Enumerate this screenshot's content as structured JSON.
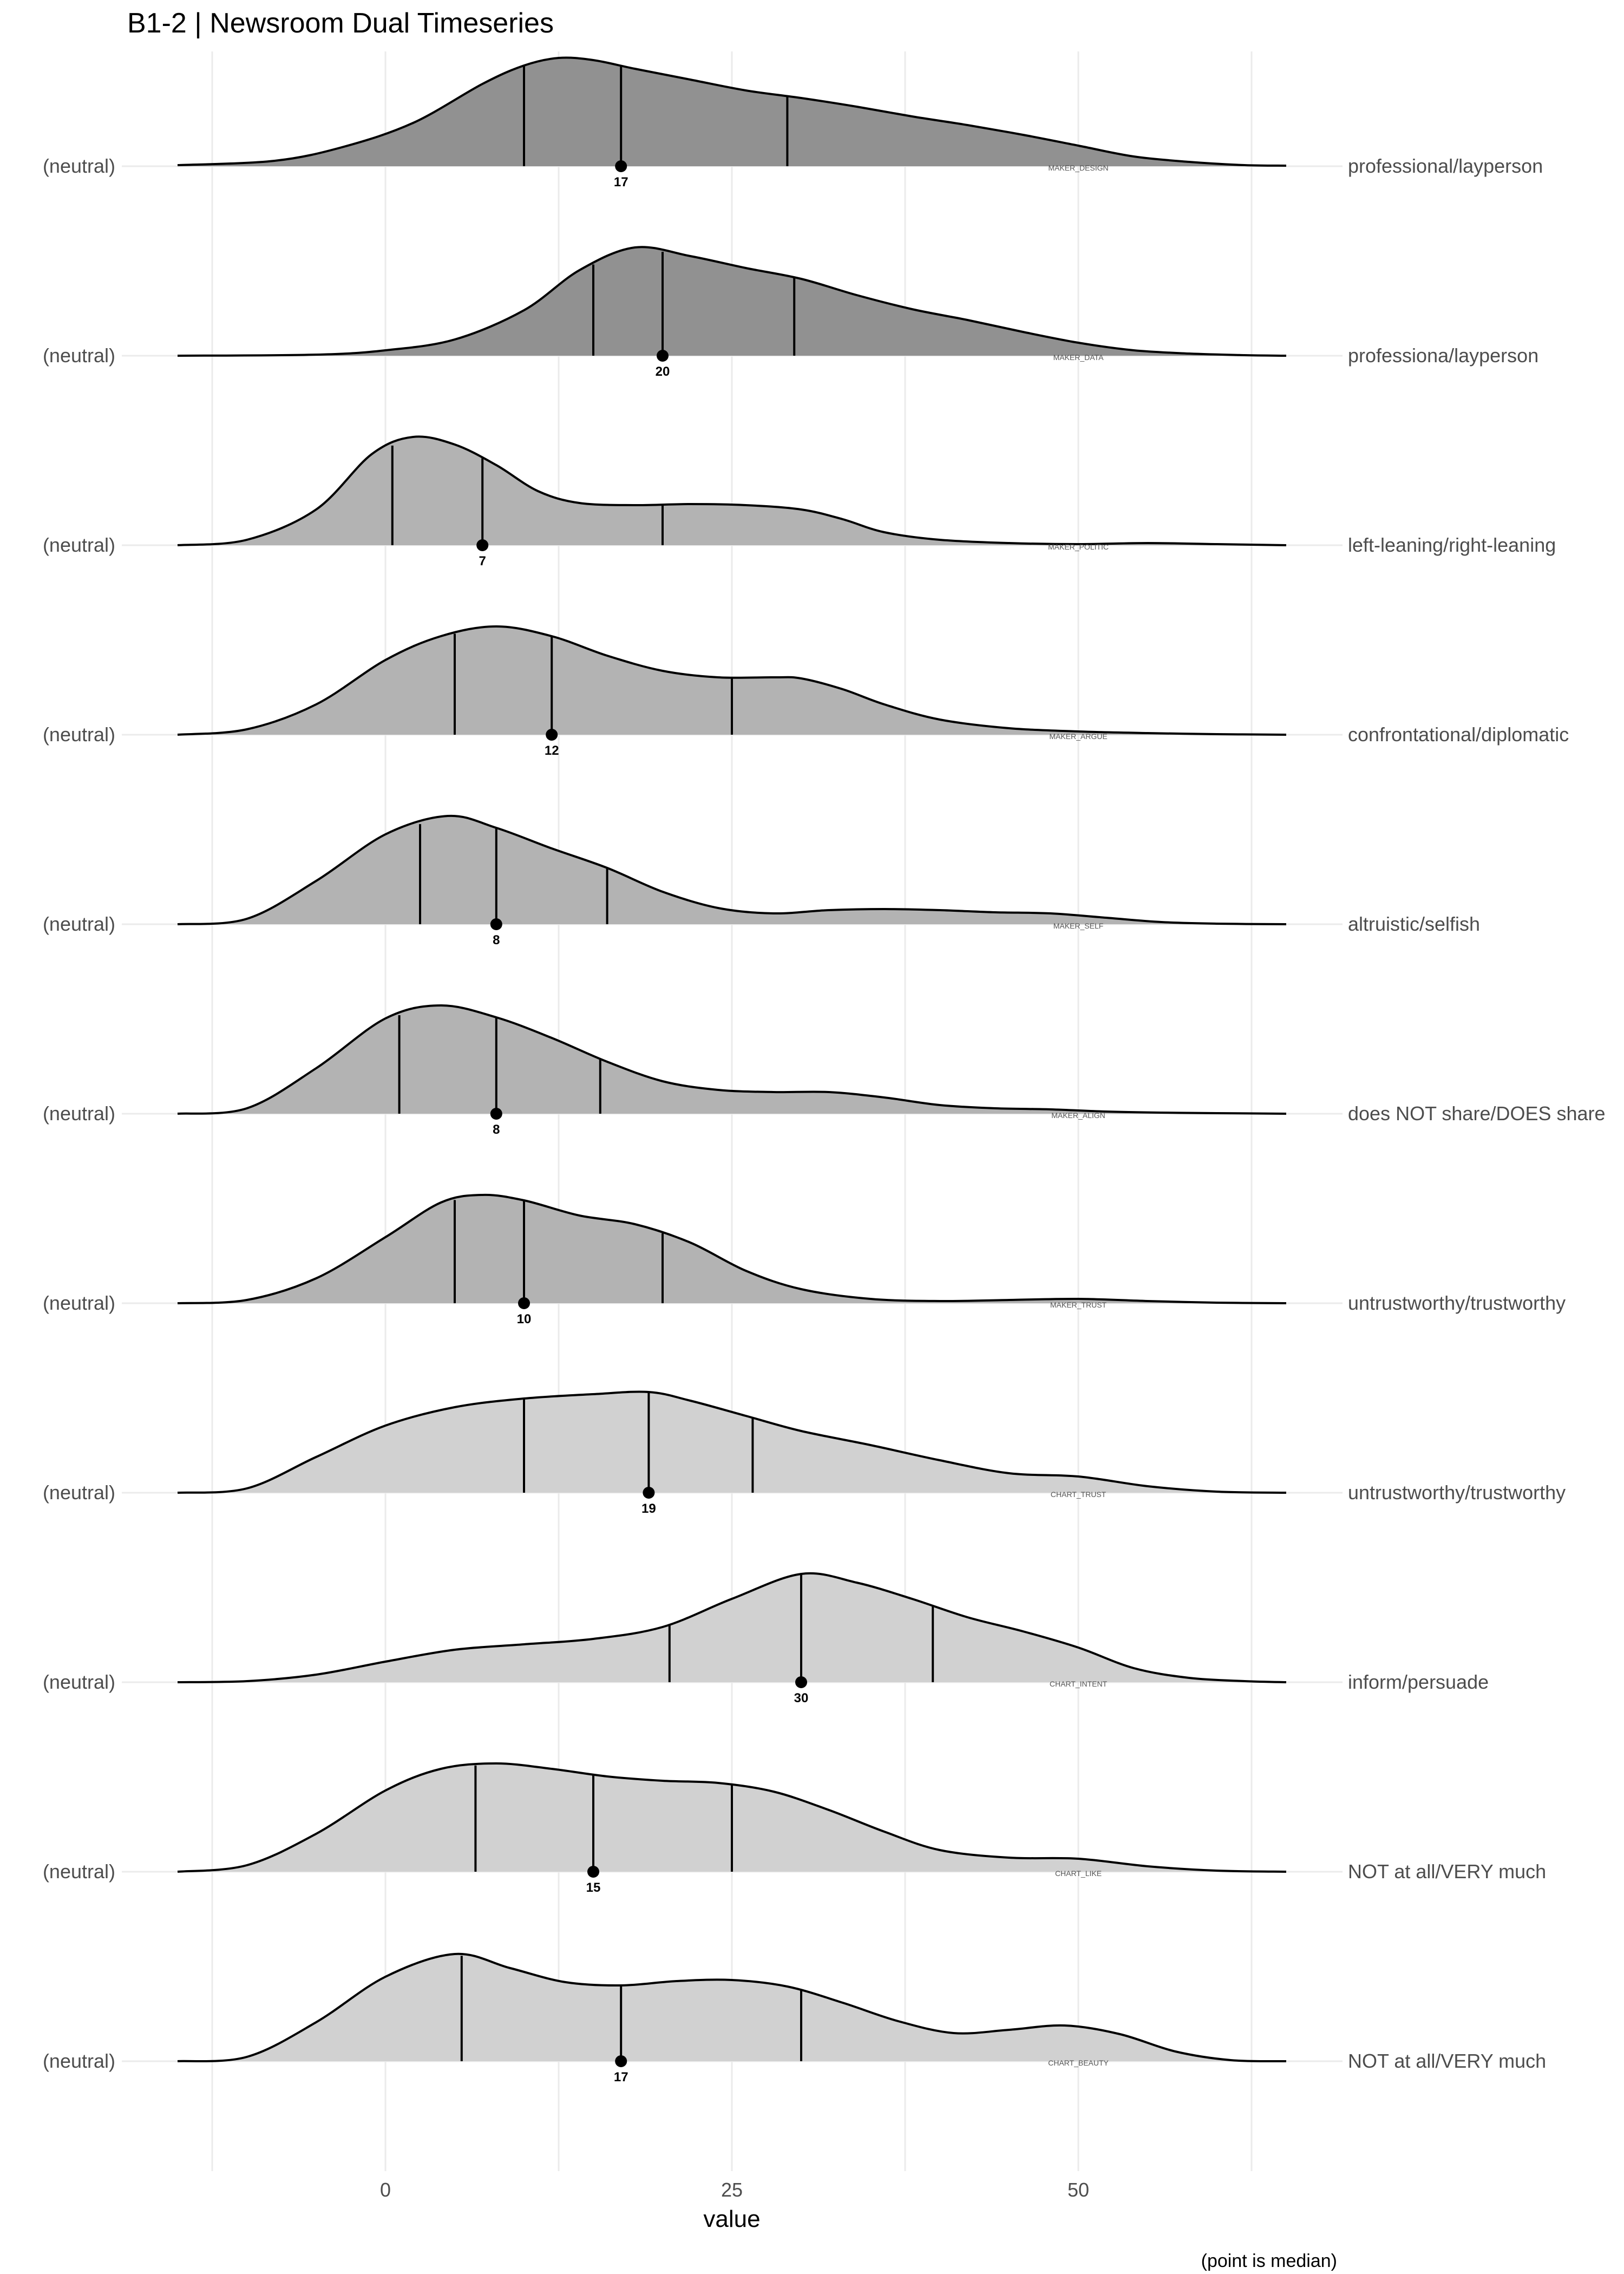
{
  "chart_data": {
    "type": "ridgeline",
    "title": "B1-2 | Newsroom Dual Timeseries",
    "xlabel": "value",
    "caption": "(point is median)",
    "xlim": [
      -15,
      65
    ],
    "x_ticks": [
      0,
      25,
      50
    ],
    "x_minor_gridlines": [
      -12.5,
      12.5,
      37.5,
      62.5
    ],
    "neutral_label": "(neutral)",
    "series": [
      {
        "var": "MAKER_DESIGN",
        "right_label": "professional/layperson",
        "color": "#919191",
        "median": 17,
        "quantiles": [
          10,
          17,
          29
        ],
        "density": [
          [
            -15,
            0.01
          ],
          [
            -8,
            0.05
          ],
          [
            -3,
            0.18
          ],
          [
            2,
            0.4
          ],
          [
            7,
            0.76
          ],
          [
            10,
            0.93
          ],
          [
            12.5,
            1.0
          ],
          [
            15,
            0.98
          ],
          [
            18,
            0.9
          ],
          [
            22,
            0.8
          ],
          [
            26,
            0.7
          ],
          [
            30,
            0.63
          ],
          [
            34,
            0.55
          ],
          [
            38,
            0.46
          ],
          [
            42,
            0.38
          ],
          [
            46,
            0.29
          ],
          [
            50,
            0.19
          ],
          [
            54,
            0.09
          ],
          [
            58,
            0.04
          ],
          [
            62,
            0.01
          ],
          [
            65,
            0.005
          ]
        ]
      },
      {
        "var": "MAKER_DATA",
        "right_label": "professiona/layperson",
        "color": "#919191",
        "median": 20,
        "quantiles": [
          15,
          20,
          29.5
        ],
        "density": [
          [
            -15,
            0.0
          ],
          [
            -5,
            0.01
          ],
          [
            0,
            0.05
          ],
          [
            5,
            0.15
          ],
          [
            10,
            0.42
          ],
          [
            14,
            0.79
          ],
          [
            18,
            1.0
          ],
          [
            22,
            0.92
          ],
          [
            26,
            0.81
          ],
          [
            30,
            0.71
          ],
          [
            34,
            0.56
          ],
          [
            38,
            0.43
          ],
          [
            42,
            0.33
          ],
          [
            46,
            0.22
          ],
          [
            50,
            0.12
          ],
          [
            54,
            0.05
          ],
          [
            58,
            0.02
          ],
          [
            62,
            0.005
          ],
          [
            65,
            0.0
          ]
        ]
      },
      {
        "var": "MAKER_POLITIC",
        "right_label": "left-leaning/right-leaning",
        "color": "#b3b3b3",
        "median": 7,
        "quantiles": [
          0.5,
          7,
          20
        ],
        "density": [
          [
            -15,
            0.0
          ],
          [
            -10,
            0.05
          ],
          [
            -5,
            0.33
          ],
          [
            -1,
            0.84
          ],
          [
            2,
            1.0
          ],
          [
            5,
            0.93
          ],
          [
            8,
            0.74
          ],
          [
            11,
            0.5
          ],
          [
            14,
            0.39
          ],
          [
            18,
            0.37
          ],
          [
            22,
            0.38
          ],
          [
            26,
            0.37
          ],
          [
            30,
            0.33
          ],
          [
            33,
            0.24
          ],
          [
            36,
            0.12
          ],
          [
            40,
            0.05
          ],
          [
            45,
            0.02
          ],
          [
            50,
            0.01
          ],
          [
            55,
            0.02
          ],
          [
            60,
            0.01
          ],
          [
            65,
            0.0
          ]
        ]
      },
      {
        "var": "MAKER_ARGUE",
        "right_label": "confrontational/diplomatic",
        "color": "#b3b3b3",
        "median": 12,
        "quantiles": [
          5,
          12,
          25
        ],
        "density": [
          [
            -15,
            0.0
          ],
          [
            -10,
            0.05
          ],
          [
            -5,
            0.28
          ],
          [
            0,
            0.69
          ],
          [
            4,
            0.91
          ],
          [
            8,
            1.0
          ],
          [
            12,
            0.91
          ],
          [
            16,
            0.73
          ],
          [
            20,
            0.59
          ],
          [
            24,
            0.53
          ],
          [
            28,
            0.53
          ],
          [
            30,
            0.52
          ],
          [
            33,
            0.42
          ],
          [
            36,
            0.28
          ],
          [
            40,
            0.14
          ],
          [
            45,
            0.06
          ],
          [
            50,
            0.03
          ],
          [
            55,
            0.015
          ],
          [
            60,
            0.005
          ],
          [
            65,
            0.0
          ]
        ]
      },
      {
        "var": "MAKER_SELF",
        "right_label": "altruistic/selfish",
        "color": "#b3b3b3",
        "median": 8,
        "quantiles": [
          2.5,
          8,
          16
        ],
        "density": [
          [
            -15,
            0.0
          ],
          [
            -10,
            0.05
          ],
          [
            -5,
            0.4
          ],
          [
            0,
            0.83
          ],
          [
            4.5,
            1.0
          ],
          [
            8,
            0.89
          ],
          [
            12,
            0.7
          ],
          [
            16,
            0.52
          ],
          [
            20,
            0.3
          ],
          [
            24,
            0.15
          ],
          [
            28,
            0.1
          ],
          [
            32,
            0.13
          ],
          [
            36,
            0.14
          ],
          [
            40,
            0.13
          ],
          [
            44,
            0.11
          ],
          [
            48,
            0.1
          ],
          [
            52,
            0.06
          ],
          [
            56,
            0.02
          ],
          [
            60,
            0.005
          ],
          [
            65,
            0.0
          ]
        ]
      },
      {
        "var": "MAKER_ALIGN",
        "right_label": "does NOT share/DOES share",
        "color": "#b3b3b3",
        "median": 8,
        "quantiles": [
          1,
          8,
          15.5
        ],
        "density": [
          [
            -15,
            0.0
          ],
          [
            -10,
            0.05
          ],
          [
            -5,
            0.42
          ],
          [
            0,
            0.88
          ],
          [
            4,
            1.0
          ],
          [
            8,
            0.89
          ],
          [
            12,
            0.7
          ],
          [
            16,
            0.48
          ],
          [
            20,
            0.3
          ],
          [
            24,
            0.22
          ],
          [
            28,
            0.2
          ],
          [
            32,
            0.2
          ],
          [
            36,
            0.15
          ],
          [
            40,
            0.08
          ],
          [
            44,
            0.05
          ],
          [
            48,
            0.04
          ],
          [
            52,
            0.02
          ],
          [
            56,
            0.01
          ],
          [
            60,
            0.005
          ],
          [
            65,
            0.0
          ]
        ]
      },
      {
        "var": "MAKER_TRUST",
        "right_label": "untrustworthy/trustworthy",
        "color": "#b3b3b3",
        "median": 10,
        "quantiles": [
          5,
          10,
          20
        ],
        "density": [
          [
            -15,
            0.0
          ],
          [
            -10,
            0.03
          ],
          [
            -5,
            0.23
          ],
          [
            0,
            0.61
          ],
          [
            4,
            0.93
          ],
          [
            7,
            1.0
          ],
          [
            10,
            0.95
          ],
          [
            14,
            0.81
          ],
          [
            18,
            0.73
          ],
          [
            22,
            0.56
          ],
          [
            26,
            0.3
          ],
          [
            30,
            0.13
          ],
          [
            35,
            0.04
          ],
          [
            40,
            0.02
          ],
          [
            45,
            0.03
          ],
          [
            50,
            0.04
          ],
          [
            55,
            0.02
          ],
          [
            60,
            0.005
          ],
          [
            65,
            0.0
          ]
        ]
      },
      {
        "var": "CHART_TRUST",
        "right_label": "untrustworthy/trustworthy",
        "color": "#d1d1d1",
        "median": 19,
        "quantiles": [
          10,
          19,
          26.5
        ],
        "density": [
          [
            -15,
            0.0
          ],
          [
            -10,
            0.04
          ],
          [
            -5,
            0.33
          ],
          [
            0,
            0.62
          ],
          [
            5,
            0.79
          ],
          [
            10,
            0.87
          ],
          [
            15,
            0.91
          ],
          [
            19,
            0.93
          ],
          [
            22,
            0.85
          ],
          [
            26,
            0.71
          ],
          [
            30,
            0.57
          ],
          [
            35,
            0.44
          ],
          [
            40,
            0.3
          ],
          [
            45,
            0.18
          ],
          [
            50,
            0.15
          ],
          [
            55,
            0.06
          ],
          [
            60,
            0.01
          ],
          [
            65,
            0.0
          ]
        ]
      },
      {
        "var": "CHART_INTENT",
        "right_label": "inform/persuade",
        "color": "#d1d1d1",
        "median": 30,
        "quantiles": [
          20.5,
          30,
          39.5
        ],
        "density": [
          [
            -15,
            0.0
          ],
          [
            -10,
            0.01
          ],
          [
            -5,
            0.07
          ],
          [
            0,
            0.19
          ],
          [
            5,
            0.3
          ],
          [
            10,
            0.35
          ],
          [
            15,
            0.4
          ],
          [
            20,
            0.51
          ],
          [
            25,
            0.77
          ],
          [
            30,
            1.0
          ],
          [
            34,
            0.92
          ],
          [
            38,
            0.77
          ],
          [
            42,
            0.6
          ],
          [
            46,
            0.47
          ],
          [
            50,
            0.32
          ],
          [
            54,
            0.13
          ],
          [
            58,
            0.04
          ],
          [
            62,
            0.01
          ],
          [
            65,
            0.0
          ]
        ]
      },
      {
        "var": "CHART_LIKE",
        "right_label": "NOT at all/VERY much",
        "color": "#d1d1d1",
        "median": 15,
        "quantiles": [
          6.5,
          15,
          25
        ],
        "density": [
          [
            -15,
            0.0
          ],
          [
            -10,
            0.06
          ],
          [
            -5,
            0.35
          ],
          [
            0,
            0.75
          ],
          [
            4,
            0.95
          ],
          [
            8,
            1.0
          ],
          [
            12,
            0.95
          ],
          [
            16,
            0.88
          ],
          [
            20,
            0.84
          ],
          [
            24,
            0.82
          ],
          [
            28,
            0.74
          ],
          [
            32,
            0.57
          ],
          [
            36,
            0.37
          ],
          [
            40,
            0.2
          ],
          [
            45,
            0.13
          ],
          [
            50,
            0.12
          ],
          [
            55,
            0.05
          ],
          [
            60,
            0.01
          ],
          [
            65,
            0.0
          ]
        ]
      },
      {
        "var": "CHART_BEAUTY",
        "right_label": "NOT at all/VERY much",
        "color": "#d1d1d1",
        "median": 17,
        "quantiles": [
          5.5,
          17,
          30
        ],
        "density": [
          [
            -15,
            0.0
          ],
          [
            -10,
            0.04
          ],
          [
            -5,
            0.36
          ],
          [
            0,
            0.78
          ],
          [
            5,
            0.99
          ],
          [
            9,
            0.86
          ],
          [
            13,
            0.73
          ],
          [
            17,
            0.7
          ],
          [
            21,
            0.74
          ],
          [
            25,
            0.75
          ],
          [
            29,
            0.69
          ],
          [
            33,
            0.54
          ],
          [
            37,
            0.37
          ],
          [
            41,
            0.26
          ],
          [
            45,
            0.29
          ],
          [
            49,
            0.33
          ],
          [
            53,
            0.25
          ],
          [
            57,
            0.09
          ],
          [
            61,
            0.01
          ],
          [
            65,
            0.0
          ]
        ]
      }
    ]
  }
}
